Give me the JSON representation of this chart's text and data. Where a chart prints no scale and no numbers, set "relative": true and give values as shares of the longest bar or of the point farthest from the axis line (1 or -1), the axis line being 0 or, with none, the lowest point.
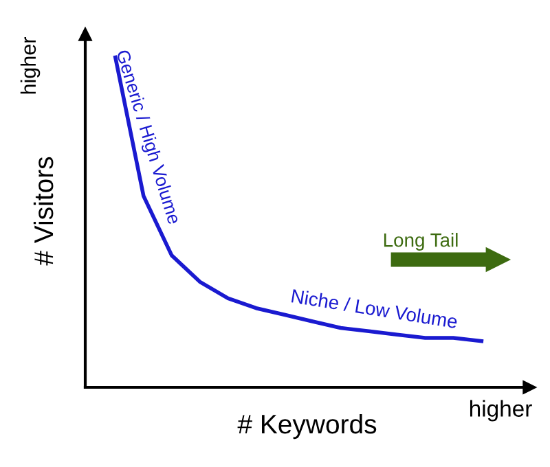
{
  "chart_data": {
    "type": "line",
    "relative": true,
    "xlabel": "# Keywords",
    "ylabel": "# Visitors",
    "categories": [
      null,
      null,
      null,
      null,
      null,
      null,
      null,
      null,
      null,
      null,
      null,
      null,
      null,
      null
    ],
    "series": [
      {
        "color": "#1a1ad0",
        "values": [
          1,
          0.58,
          0.4,
          0.32,
          0.27,
          0.24,
          0.22,
          0.2,
          0.18,
          0.17,
          0.16,
          0.15,
          0.15,
          0.14
        ]
      }
    ],
    "annotations": [
      "Generic / High Volume",
      "Niche / Low Volume",
      "Long Tail",
      "higher",
      "higher"
    ],
    "marker": "none",
    "line_style": "solid"
  }
}
